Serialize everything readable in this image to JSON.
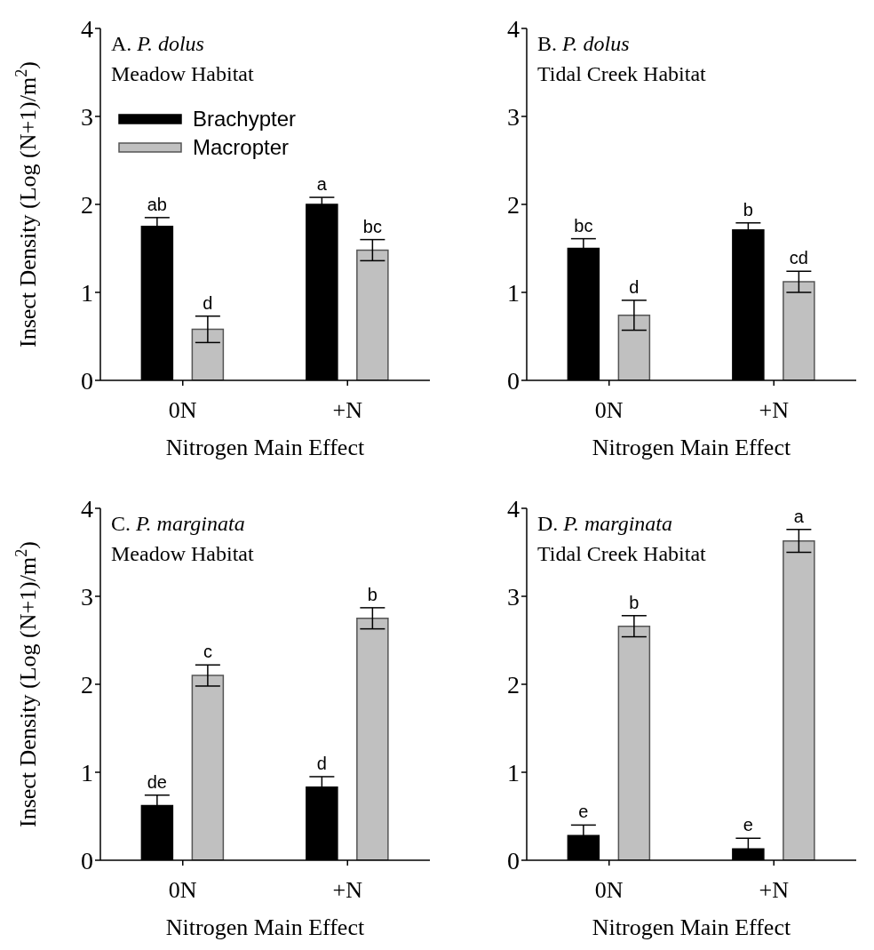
{
  "chart_data": [
    {
      "type": "bar",
      "title": "A. P. dolus",
      "subtitle": "Meadow Habitat",
      "xlabel": "Nitrogen Main Effect",
      "ylabel": "Insect Density (Log (N+1)/m$^{2}$)",
      "categories": [
        "0N",
        "+N"
      ],
      "ylim": [
        0,
        4
      ],
      "yticks": [
        0,
        1,
        2,
        3,
        4
      ],
      "grid": false,
      "legend": "top left",
      "series": [
        {
          "name": "Brachypter",
          "color": "#000000",
          "values": [
            1.75,
            2.0
          ],
          "errors": [
            0.1,
            0.08
          ],
          "value_labels": [
            "ab",
            "a"
          ]
        },
        {
          "name": "Macropter",
          "color": "#c0c0c0",
          "values": [
            0.58,
            1.48
          ],
          "errors": [
            0.15,
            0.12
          ],
          "value_labels": [
            "d",
            "bc"
          ]
        }
      ]
    },
    {
      "type": "bar",
      "title": "B. P. dolus",
      "subtitle": "Tidal Creek Habitat",
      "xlabel": "Nitrogen Main Effect",
      "categories": [
        "0N",
        "+N"
      ],
      "ylim": [
        0,
        4
      ],
      "yticks": [
        0,
        1,
        2,
        3,
        4
      ],
      "grid": false,
      "legend": false,
      "series": [
        {
          "color": "#000000",
          "values": [
            1.5,
            1.71
          ],
          "errors": [
            0.11,
            0.08
          ],
          "value_labels": [
            "bc",
            "b"
          ]
        },
        {
          "color": "#c0c0c0",
          "values": [
            0.74,
            1.12
          ],
          "errors": [
            0.17,
            0.12
          ],
          "value_labels": [
            "d",
            "cd"
          ]
        }
      ]
    },
    {
      "type": "bar",
      "title": "C. P. marginata",
      "subtitle": "Meadow Habitat",
      "xlabel": "Nitrogen Main Effect",
      "ylabel": "Insect Density (Log (N+1)/m$^{2}$)",
      "categories": [
        "0N",
        "+N"
      ],
      "ylim": [
        0,
        4
      ],
      "yticks": [
        0,
        1,
        2,
        3,
        4
      ],
      "grid": false,
      "legend": false,
      "series": [
        {
          "color": "#000000",
          "values": [
            0.62,
            0.83
          ],
          "errors": [
            0.12,
            0.12
          ],
          "value_labels": [
            "de",
            "d"
          ]
        },
        {
          "color": "#c0c0c0",
          "values": [
            2.1,
            2.75
          ],
          "errors": [
            0.12,
            0.12
          ],
          "value_labels": [
            "c",
            "b"
          ]
        }
      ]
    },
    {
      "type": "bar",
      "title": "D. P. marginata",
      "subtitle": "Tidal Creek Habitat",
      "xlabel": "Nitrogen Main Effect",
      "categories": [
        "0N",
        "+N"
      ],
      "ylim": [
        0,
        4
      ],
      "yticks": [
        0,
        1,
        2,
        3,
        4
      ],
      "grid": false,
      "legend": false,
      "series": [
        {
          "color": "#000000",
          "values": [
            0.28,
            0.13
          ],
          "errors": [
            0.12,
            0.12
          ],
          "value_labels": [
            "e",
            "e"
          ]
        },
        {
          "color": "#c0c0c0",
          "values": [
            2.66,
            3.63
          ],
          "errors": [
            0.12,
            0.13
          ],
          "value_labels": [
            "b",
            "a"
          ]
        }
      ]
    }
  ]
}
